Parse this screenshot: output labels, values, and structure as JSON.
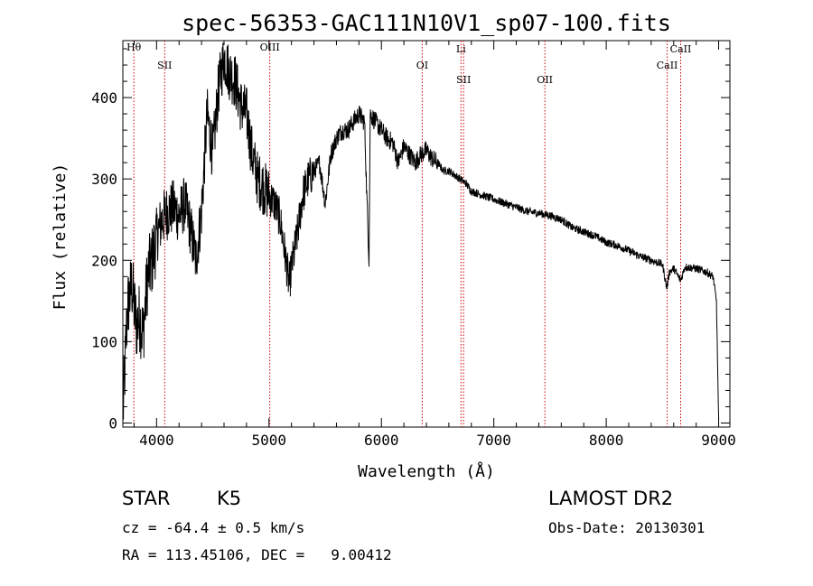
{
  "chart_data": {
    "type": "line",
    "title": "spec-56353-GAC111N10V1_sp07-100.fits",
    "xlabel": "Wavelength (Å)",
    "ylabel": "Flux (relative)",
    "xlim": [
      3700,
      9100
    ],
    "ylim": [
      -5,
      470
    ],
    "x_ticks": [
      4000,
      5000,
      6000,
      7000,
      8000,
      9000
    ],
    "y_ticks": [
      0,
      100,
      200,
      300,
      400
    ],
    "x_tick_labels": [
      "4000",
      "5000",
      "6000",
      "7000",
      "8000",
      "9000"
    ],
    "y_tick_labels": [
      "0",
      "100",
      "200",
      "300",
      "400"
    ],
    "grid": false,
    "line_color": "#000000",
    "series": [
      {
        "x": [
          3700,
          3740,
          3780,
          3820,
          3850,
          3880,
          3920,
          3960,
          4000,
          4050,
          4100,
          4150,
          4200,
          4250,
          4300,
          4350,
          4400,
          4450,
          4500,
          4550,
          4600,
          4650,
          4700,
          4750,
          4800,
          4850,
          4900,
          4950,
          5000,
          5050,
          5100,
          5150,
          5180,
          5200,
          5250,
          5300,
          5350,
          5400,
          5450,
          5500,
          5550,
          5600,
          5650,
          5700,
          5750,
          5800,
          5850,
          5870,
          5890,
          5900,
          5950,
          6000,
          6050,
          6100,
          6150,
          6200,
          6250,
          6300,
          6350,
          6400,
          6450,
          6500,
          6550,
          6600,
          6650,
          6700,
          6750,
          6800,
          6900,
          7000,
          7100,
          7200,
          7300,
          7400,
          7500,
          7600,
          7700,
          7800,
          7900,
          8000,
          8100,
          8200,
          8300,
          8400,
          8500,
          8540,
          8560,
          8600,
          8662,
          8700,
          8800,
          8900,
          8950,
          8980,
          9000
        ],
        "y": [
          5,
          140,
          170,
          120,
          130,
          110,
          180,
          200,
          230,
          250,
          260,
          265,
          255,
          270,
          240,
          200,
          260,
          380,
          330,
          410,
          450,
          430,
          420,
          390,
          380,
          330,
          300,
          290,
          280,
          270,
          250,
          200,
          170,
          190,
          230,
          280,
          300,
          310,
          320,
          270,
          330,
          350,
          360,
          360,
          370,
          380,
          370,
          280,
          200,
          380,
          370,
          360,
          350,
          345,
          320,
          340,
          330,
          320,
          330,
          335,
          325,
          320,
          310,
          310,
          305,
          300,
          295,
          285,
          280,
          275,
          270,
          265,
          260,
          258,
          255,
          250,
          240,
          235,
          230,
          222,
          218,
          212,
          205,
          200,
          195,
          165,
          185,
          190,
          175,
          192,
          190,
          185,
          180,
          150,
          5
        ]
      }
    ],
    "annotations": [
      {
        "label": "Hθ",
        "x": 3798
      },
      {
        "label": "SII",
        "x": 4072
      },
      {
        "label": "OIII",
        "x": 5007
      },
      {
        "label": "OI",
        "x": 6363
      },
      {
        "label": "Li",
        "x": 6708
      },
      {
        "label": "SII",
        "x": 6731
      },
      {
        "label": "OII",
        "x": 7454
      },
      {
        "label": "CaII",
        "x": 8542
      },
      {
        "label": "CaII",
        "x": 8662
      }
    ],
    "annotation_color": "#cc0000"
  },
  "info": {
    "object_class": "STAR",
    "subclass": "K5",
    "redshift": "cz = -64.4 ± 0.5 km/s",
    "coords": "RA = 113.45106, DEC =   9.00412",
    "survey": "LAMOST DR2",
    "obs_date": "Obs-Date: 20130301"
  }
}
